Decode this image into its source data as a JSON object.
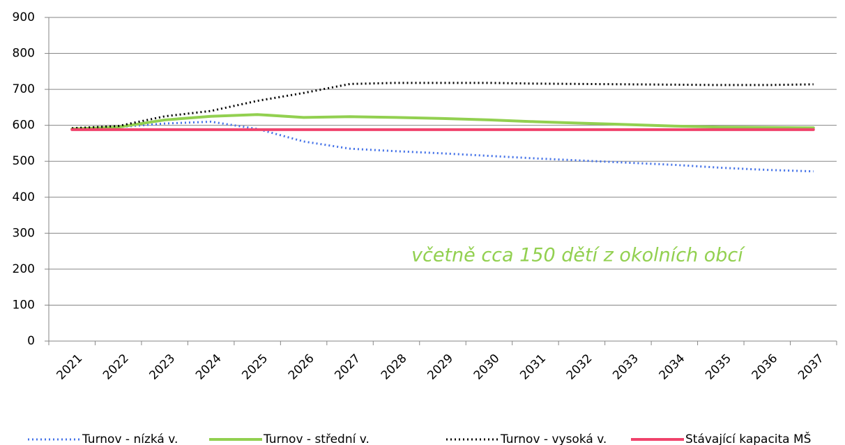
{
  "chart_data": {
    "type": "line",
    "categories": [
      "2021",
      "2022",
      "2023",
      "2024",
      "2025",
      "2026",
      "2027",
      "2028",
      "2029",
      "2030",
      "2031",
      "2032",
      "2033",
      "2034",
      "2035",
      "2036",
      "2037"
    ],
    "series": [
      {
        "name": "Turnov - nízká v.",
        "color": "#4472e8",
        "dash": "dotted",
        "values": [
          590,
          595,
          605,
          610,
          590,
          555,
          535,
          528,
          522,
          515,
          508,
          502,
          496,
          490,
          482,
          476,
          472
        ]
      },
      {
        "name": "Turnov - střední v.",
        "color": "#92d050",
        "dash": "solid",
        "values": [
          590,
          595,
          615,
          625,
          630,
          622,
          624,
          622,
          619,
          615,
          610,
          606,
          602,
          598,
          595,
          594,
          593
        ]
      },
      {
        "name": "Turnov - vysoká v.",
        "color": "#000000",
        "dash": "dotted",
        "values": [
          592,
          598,
          625,
          640,
          668,
          690,
          715,
          718,
          718,
          718,
          716,
          715,
          714,
          713,
          712,
          712,
          714
        ]
      },
      {
        "name": "Stávající kapacita MŠ",
        "color": "#f0436c",
        "dash": "solid",
        "values": [
          588,
          588,
          588,
          588,
          588,
          588,
          588,
          588,
          588,
          588,
          588,
          588,
          588,
          588,
          588,
          588,
          588
        ]
      }
    ],
    "annotation": "včetně cca 150 dětí z okolních obcí",
    "ylim": [
      0,
      900
    ],
    "yticks": [
      0,
      100,
      200,
      300,
      400,
      500,
      600,
      700,
      800,
      900
    ],
    "grid": true,
    "legend": "bottom"
  }
}
